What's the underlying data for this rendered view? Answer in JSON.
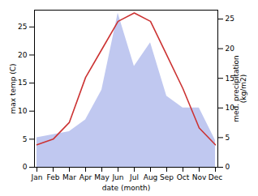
{
  "chart_data": {
    "type": "line",
    "categories": [
      "Jan",
      "Feb",
      "Mar",
      "Apr",
      "May",
      "Jun",
      "Jul",
      "Aug",
      "Sep",
      "Oct",
      "Nov",
      "Dec"
    ],
    "xlabel": "date (month)",
    "ylabel": "max temp (C)",
    "y2label": "med. precipitation\n(kg/m2)",
    "series": [
      {
        "type": "area",
        "axis": "y2",
        "color": "#c0c8f0",
        "values": [
          5,
          5.5,
          6,
          8,
          13,
          26,
          17,
          21,
          12,
          10,
          10,
          4.5
        ]
      },
      {
        "type": "line",
        "color": "#cc3333",
        "values": [
          4,
          5,
          8,
          16,
          21,
          26,
          27.5,
          26,
          20,
          14,
          7,
          4
        ]
      }
    ],
    "ylim": [
      0,
      28
    ],
    "yticks": [
      0,
      5,
      10,
      15,
      20,
      25
    ],
    "y2lim": [
      0,
      26.5
    ],
    "y2ticks": [
      0,
      5,
      10,
      15,
      20,
      25
    ]
  }
}
